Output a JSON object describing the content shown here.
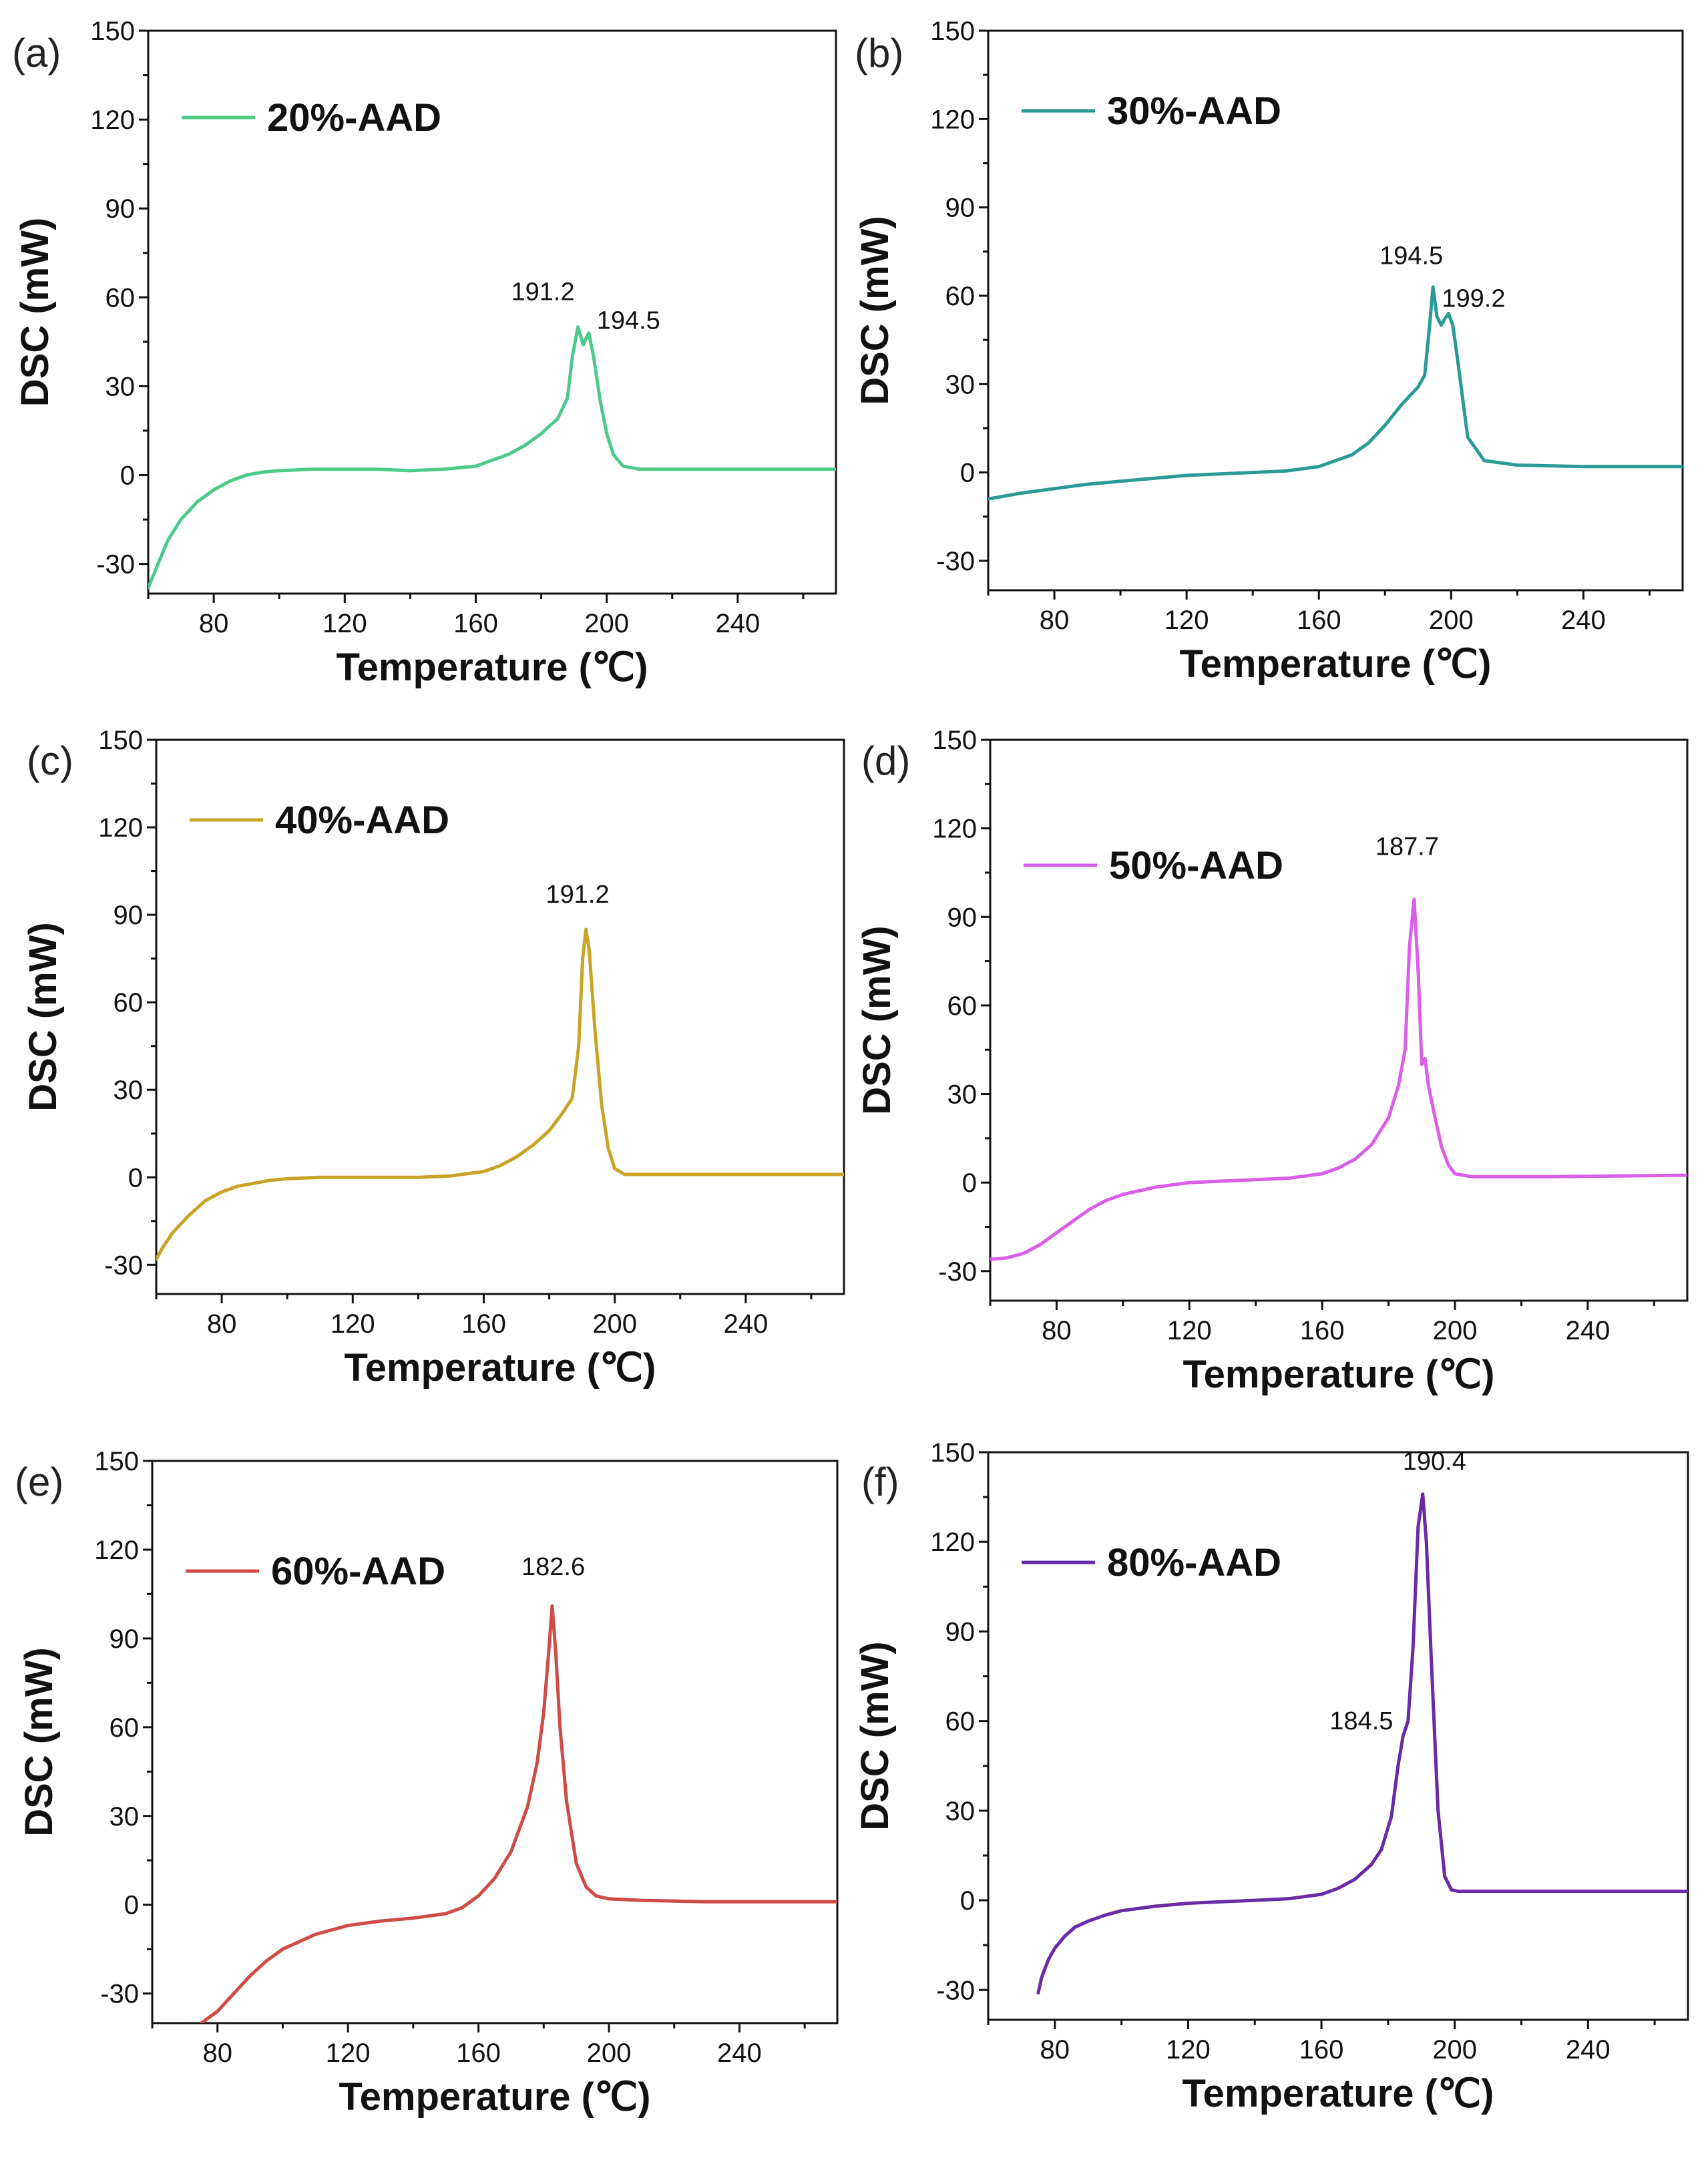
{
  "chart_data": [
    {
      "panel": "(a)",
      "type": "line",
      "xlabel": "Temperature (℃)",
      "ylabel": "DSC (mW)",
      "xlim": [
        60,
        270
      ],
      "ylim": [
        -40,
        150
      ],
      "xticks": [
        80,
        120,
        160,
        200,
        240
      ],
      "yticks": [
        -30,
        0,
        30,
        60,
        90,
        120,
        150
      ],
      "series": [
        {
          "name": "20%-AAD",
          "color": "#4dc98a",
          "x": [
            60,
            63,
            66,
            70,
            75,
            80,
            85,
            90,
            95,
            100,
            110,
            120,
            130,
            140,
            150,
            160,
            165,
            170,
            175,
            180,
            185,
            188,
            189.5,
            191.2,
            192.8,
            194.5,
            196,
            198,
            200,
            202,
            205,
            210,
            220,
            240,
            270
          ],
          "y": [
            -38,
            -30,
            -22,
            -15,
            -9,
            -5,
            -2,
            0,
            1,
            1.5,
            2,
            2,
            2,
            1.5,
            2,
            3,
            5,
            7,
            10,
            14,
            19,
            26,
            40,
            50,
            44,
            48,
            40,
            25,
            14,
            7,
            3,
            2,
            2,
            2,
            2
          ]
        }
      ],
      "annotations": [
        {
          "text": "191.2",
          "x": 191.2,
          "y": 50
        },
        {
          "text": "194.5",
          "x": 194.5,
          "y": 48
        }
      ]
    },
    {
      "panel": "(b)",
      "type": "line",
      "xlabel": "Temperature (℃)",
      "ylabel": "DSC (mW)",
      "xlim": [
        60,
        270
      ],
      "ylim": [
        -40,
        150
      ],
      "xticks": [
        80,
        120,
        160,
        200,
        240
      ],
      "yticks": [
        -30,
        0,
        30,
        60,
        90,
        120,
        150
      ],
      "series": [
        {
          "name": "30%-AAD",
          "color": "#2a9a96",
          "x": [
            60,
            70,
            80,
            90,
            100,
            110,
            120,
            130,
            140,
            150,
            160,
            170,
            175,
            180,
            185,
            190,
            192,
            193.5,
            194.5,
            195.7,
            197,
            198,
            199.2,
            200.5,
            202,
            205,
            210,
            220,
            240,
            270
          ],
          "y": [
            -9,
            -7,
            -5.5,
            -4,
            -3,
            -2,
            -1,
            -0.5,
            0,
            0.5,
            2,
            6,
            10,
            16,
            23,
            29,
            33,
            50,
            63,
            53,
            50,
            52,
            54,
            50,
            38,
            12,
            4,
            2.5,
            2,
            2
          ]
        }
      ],
      "annotations": [
        {
          "text": "194.5",
          "x": 194.5,
          "y": 63
        },
        {
          "text": "199.2",
          "x": 199.2,
          "y": 54
        }
      ]
    },
    {
      "panel": "(c)",
      "type": "line",
      "xlabel": "Temperature (℃)",
      "ylabel": "DSC (mW)",
      "xlim": [
        60,
        270
      ],
      "ylim": [
        -40,
        150
      ],
      "xticks": [
        80,
        120,
        160,
        200,
        240
      ],
      "yticks": [
        -30,
        0,
        30,
        60,
        90,
        120,
        150
      ],
      "series": [
        {
          "name": "40%-AAD",
          "color": "#c9a326",
          "x": [
            60,
            62,
            65,
            70,
            75,
            80,
            85,
            90,
            95,
            100,
            110,
            120,
            130,
            140,
            150,
            160,
            165,
            170,
            175,
            180,
            184,
            187,
            189,
            190.2,
            191.2,
            192.2,
            194,
            196,
            198,
            200,
            203,
            210,
            230,
            270
          ],
          "y": [
            -28,
            -24,
            -19,
            -13,
            -8,
            -5,
            -3,
            -2,
            -1,
            -0.5,
            0,
            0,
            0,
            0,
            0.5,
            2,
            4,
            7,
            11,
            16,
            22,
            27,
            45,
            75,
            85,
            78,
            50,
            25,
            10,
            3,
            1,
            1,
            1,
            1
          ]
        }
      ],
      "annotations": [
        {
          "text": "191.2",
          "x": 191.2,
          "y": 85
        }
      ]
    },
    {
      "panel": "(d)",
      "type": "line",
      "xlabel": "Temperature (℃)",
      "ylabel": "DSC (mW)",
      "xlim": [
        60,
        270
      ],
      "ylim": [
        -40,
        150
      ],
      "xticks": [
        80,
        120,
        160,
        200,
        240
      ],
      "yticks": [
        -30,
        0,
        30,
        60,
        90,
        120,
        150
      ],
      "series": [
        {
          "name": "50%-AAD",
          "color": "#d95ee8",
          "x": [
            60,
            65,
            70,
            75,
            80,
            85,
            90,
            95,
            100,
            110,
            120,
            130,
            140,
            150,
            160,
            165,
            170,
            175,
            180,
            183,
            185,
            186.3,
            187.7,
            189,
            190,
            191,
            192,
            194,
            196,
            198,
            200,
            205,
            210,
            230,
            270
          ],
          "y": [
            -26,
            -25.5,
            -24,
            -21,
            -17,
            -13,
            -9,
            -6,
            -4,
            -1.5,
            0,
            0.5,
            1,
            1.5,
            3,
            5,
            8,
            13,
            22,
            33,
            45,
            80,
            96,
            70,
            40,
            42,
            33,
            22,
            12,
            6,
            3,
            2,
            2,
            2,
            2.5
          ]
        }
      ],
      "annotations": [
        {
          "text": "187.7",
          "x": 187.7,
          "y": 96
        }
      ]
    },
    {
      "panel": "(e)",
      "type": "line",
      "xlabel": "Temperature (℃)",
      "ylabel": "DSC (mW)",
      "xlim": [
        60,
        270
      ],
      "ylim": [
        -40,
        150
      ],
      "xticks": [
        80,
        120,
        160,
        200,
        240
      ],
      "yticks": [
        -30,
        0,
        30,
        60,
        90,
        120,
        150
      ],
      "series": [
        {
          "name": "60%-AAD",
          "color": "#d04a46",
          "x": [
            75,
            80,
            85,
            90,
            95,
            100,
            110,
            120,
            130,
            140,
            150,
            155,
            160,
            165,
            170,
            175,
            178,
            180,
            181.5,
            182.6,
            183.7,
            185,
            187,
            190,
            193,
            196,
            200,
            210,
            230,
            270
          ],
          "y": [
            -40,
            -36,
            -30,
            -24,
            -19,
            -15,
            -10,
            -7,
            -5.5,
            -4.5,
            -3,
            -1,
            3,
            9,
            18,
            33,
            48,
            65,
            85,
            101,
            85,
            60,
            35,
            14,
            6,
            3,
            2,
            1.5,
            1,
            1
          ]
        }
      ],
      "annotations": [
        {
          "text": "182.6",
          "x": 182.6,
          "y": 101
        }
      ]
    },
    {
      "panel": "(f)",
      "type": "line",
      "xlabel": "Temperature (℃)",
      "ylabel": "DSC (mW)",
      "xlim": [
        60,
        270
      ],
      "ylim": [
        -40,
        150
      ],
      "xticks": [
        80,
        120,
        160,
        200,
        240
      ],
      "yticks": [
        -30,
        0,
        30,
        60,
        90,
        120,
        150
      ],
      "series": [
        {
          "name": "80%-AAD",
          "color": "#6a2aa6",
          "x": [
            75,
            76,
            78,
            80,
            83,
            86,
            90,
            95,
            100,
            110,
            120,
            130,
            140,
            150,
            160,
            165,
            170,
            175,
            178,
            181,
            183,
            184.5,
            186,
            187.5,
            189,
            190.4,
            191.5,
            193,
            195,
            197,
            199,
            201,
            205,
            220,
            240,
            270
          ],
          "y": [
            -31,
            -26,
            -20,
            -16,
            -12,
            -9,
            -7,
            -5,
            -3.5,
            -2,
            -1,
            -0.5,
            0,
            0.5,
            2,
            4,
            7,
            12,
            17,
            28,
            45,
            55,
            60,
            85,
            125,
            136,
            120,
            80,
            30,
            8,
            3.5,
            3,
            3,
            3,
            3,
            3
          ]
        }
      ],
      "annotations": [
        {
          "text": "190.4",
          "x": 190.4,
          "y": 136
        },
        {
          "text": "184.5",
          "x": 184.5,
          "y": 55
        }
      ]
    }
  ]
}
